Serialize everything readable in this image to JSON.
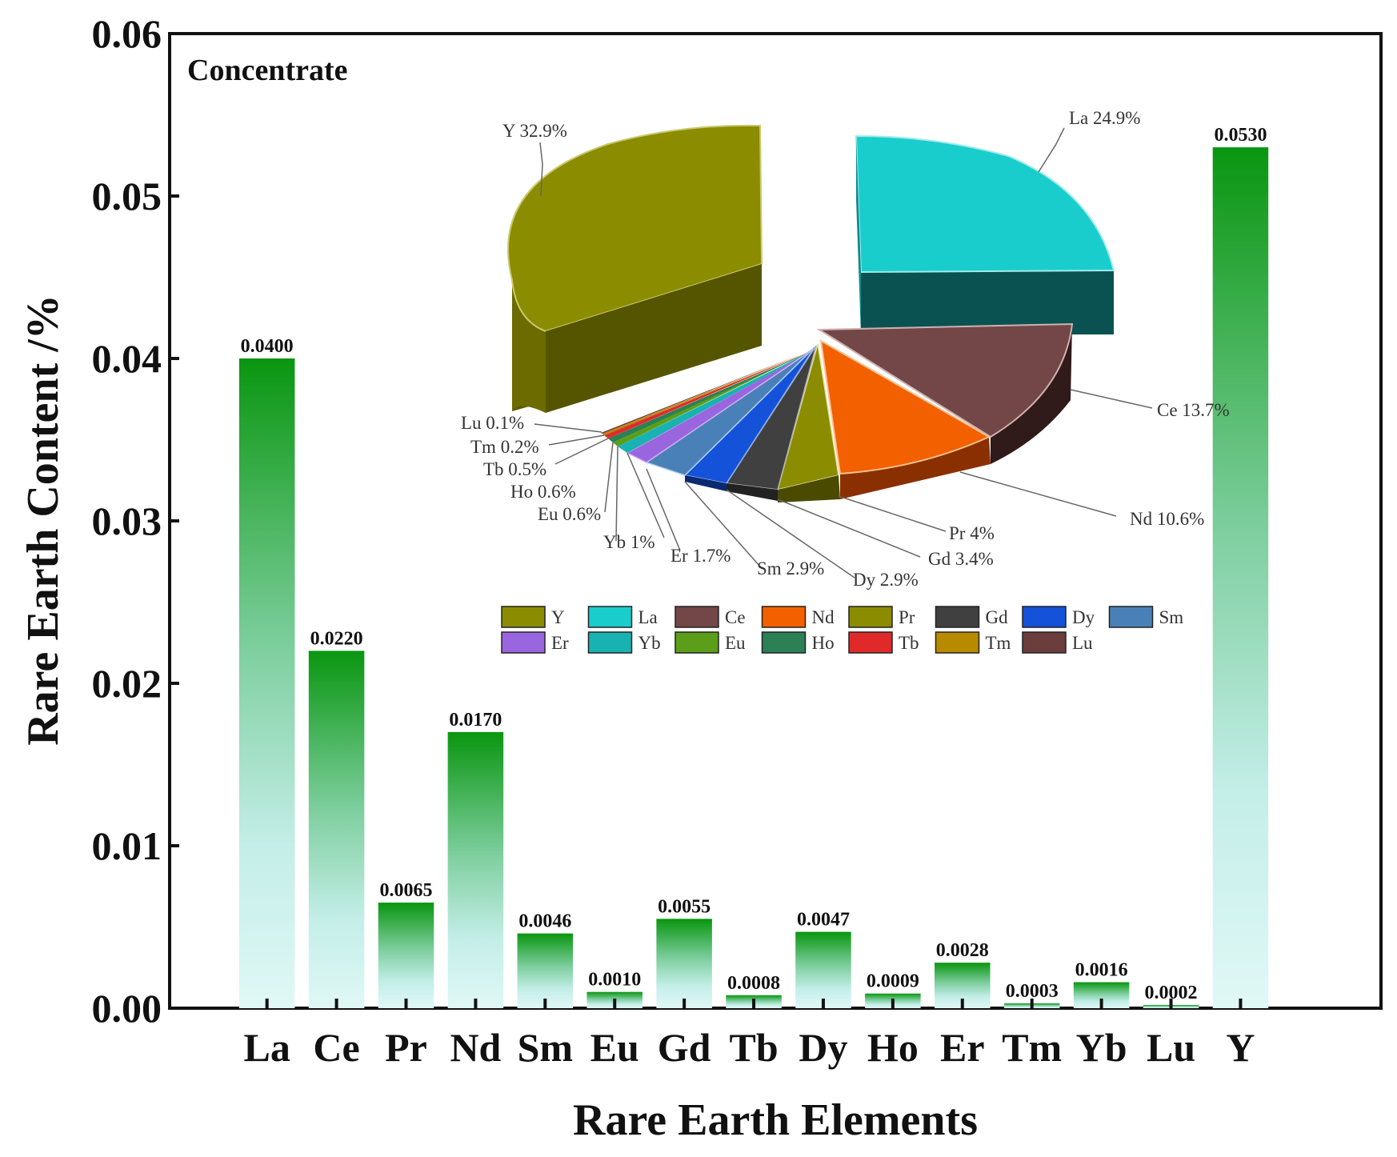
{
  "chart_data": [
    {
      "type": "bar",
      "title": "Concentrate",
      "xlabel": "Rare Earth Elements",
      "ylabel": "Rare Earth Content /%",
      "categories": [
        "La",
        "Ce",
        "Pr",
        "Nd",
        "Sm",
        "Eu",
        "Gd",
        "Tb",
        "Dy",
        "Ho",
        "Er",
        "Tm",
        "Yb",
        "Lu",
        "Y"
      ],
      "values": [
        0.04,
        0.022,
        0.0065,
        0.017,
        0.0046,
        0.001,
        0.0055,
        0.0008,
        0.0047,
        0.0009,
        0.0028,
        0.0003,
        0.0016,
        0.0002,
        0.053
      ],
      "value_labels": [
        "0.0400",
        "0.0220",
        "0.0065",
        "0.0170",
        "0.0046",
        "0.0010",
        "0.0055",
        "0.0008",
        "0.0047",
        "0.0009",
        "0.0028",
        "0.0003",
        "0.0016",
        "0.0002",
        "0.0530"
      ],
      "ylim": [
        0,
        0.06
      ],
      "yticks": [
        0,
        0.01,
        0.02,
        0.03,
        0.04,
        0.05,
        0.06
      ],
      "ytick_labels": [
        "0.00",
        "0.01",
        "0.02",
        "0.03",
        "0.04",
        "0.05",
        "0.06"
      ],
      "grid": false,
      "colors": {
        "bar_top": "#0a9610",
        "bar_mid": "#7fcfa0",
        "bar_bottom": "#d8f6f4"
      }
    },
    {
      "type": "pie",
      "style": "3d-exploded",
      "slices": [
        {
          "name": "Y",
          "value": 32.9,
          "label": "Y 32.9%",
          "color": "#8c8c00"
        },
        {
          "name": "La",
          "value": 24.9,
          "label": "La 24.9%",
          "color": "#19cdcd"
        },
        {
          "name": "Ce",
          "value": 13.7,
          "label": "Ce 13.7%",
          "color": "#734747"
        },
        {
          "name": "Nd",
          "value": 10.6,
          "label": "Nd 10.6%",
          "color": "#f26000"
        },
        {
          "name": "Pr",
          "value": 4,
          "label": "Pr 4%",
          "color": "#8c8c00"
        },
        {
          "name": "Gd",
          "value": 3.4,
          "label": "Gd 3.4%",
          "color": "#404040"
        },
        {
          "name": "Dy",
          "value": 2.9,
          "label": "Dy 2.9%",
          "color": "#1452d9"
        },
        {
          "name": "Sm",
          "value": 2.9,
          "label": "Sm 2.9%",
          "color": "#4a80b8"
        },
        {
          "name": "Er",
          "value": 1.7,
          "label": "Er 1.7%",
          "color": "#9966e0"
        },
        {
          "name": "Yb",
          "value": 1,
          "label": "Yb 1%",
          "color": "#19b2b2"
        },
        {
          "name": "Eu",
          "value": 0.6,
          "label": "Eu 0.6%",
          "color": "#5c9e1a"
        },
        {
          "name": "Ho",
          "value": 0.6,
          "label": "Ho 0.6%",
          "color": "#2b8055"
        },
        {
          "name": "Tb",
          "value": 0.5,
          "label": "Tb 0.5%",
          "color": "#e02a2a"
        },
        {
          "name": "Tm",
          "value": 0.2,
          "label": "Tm 0.2%",
          "color": "#b88a00"
        },
        {
          "name": "Lu",
          "value": 0.1,
          "label": "Lu 0.1%",
          "color": "#6b3d3d"
        }
      ],
      "legend": [
        "Y",
        "La",
        "Ce",
        "Nd",
        "Pr",
        "Gd",
        "Dy",
        "Sm",
        "Er",
        "Yb",
        "Eu",
        "Ho",
        "Tb",
        "Tm",
        "Lu"
      ]
    }
  ]
}
